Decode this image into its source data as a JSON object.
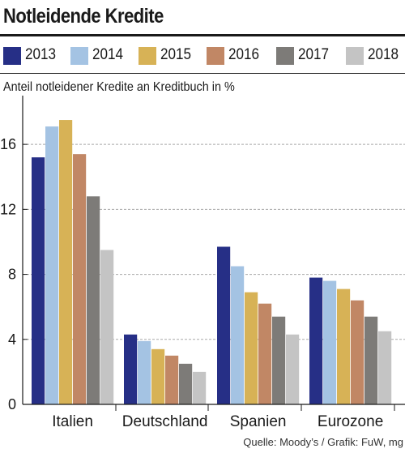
{
  "chart_data": {
    "type": "bar",
    "title": "Notleidende Kredite",
    "ylabel": "Anteil notleidener Kredite an Kreditbuch in %",
    "xlabel": "",
    "categories": [
      "Italien",
      "Deutschland",
      "Spanien",
      "Eurozone"
    ],
    "series": [
      {
        "name": "2013",
        "color": "#262f86",
        "values": [
          15.2,
          4.3,
          9.7,
          7.8
        ]
      },
      {
        "name": "2014",
        "color": "#a4c3e3",
        "values": [
          17.1,
          3.9,
          8.5,
          7.6
        ]
      },
      {
        "name": "2015",
        "color": "#d7b256",
        "values": [
          17.5,
          3.4,
          6.9,
          7.1
        ]
      },
      {
        "name": "2016",
        "color": "#c18765",
        "values": [
          15.4,
          3.0,
          6.2,
          6.4
        ]
      },
      {
        "name": "2017",
        "color": "#7d7b78",
        "values": [
          12.8,
          2.5,
          5.4,
          5.4
        ]
      },
      {
        "name": "2018",
        "color": "#c4c4c4",
        "values": [
          9.5,
          2.0,
          4.3,
          4.5
        ]
      }
    ],
    "yticks": [
      "0",
      "4",
      "8",
      "12",
      "16"
    ],
    "yticks_values": [
      0,
      4,
      8,
      12,
      16
    ],
    "ylim": [
      0,
      18.4
    ],
    "grid": "horizontal",
    "legend_position": "top"
  },
  "source": "Quelle: Moody’s / Grafik: FuW, mg"
}
